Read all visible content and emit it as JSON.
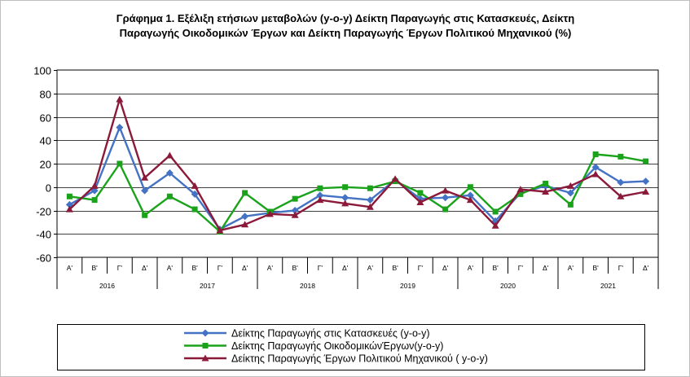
{
  "chart_data": {
    "type": "line",
    "title_lines": [
      "Γράφημα 1. Εξέλιξη ετήσιων μεταβολών (y-o-y) Δείκτη Παραγωγής στις Κατασκευές, Δείκτη",
      "Παραγωγής Οικοδομικών Έργων και  Δείκτη Παραγωγής  Έργων Πολιτικού Μηχανικού (%)"
    ],
    "quarters": [
      "Α'",
      "Β'",
      "Γ'",
      "Δ'",
      "Α'",
      "Β'",
      "Γ'",
      "Δ'",
      "Α'",
      "Β'",
      "Γ'",
      "Δ'",
      "Α'",
      "Β'",
      "Γ'",
      "Δ'",
      "Α'",
      "Β'",
      "Γ'",
      "Δ'",
      "Α'",
      "Β'",
      "Γ'",
      "Δ'"
    ],
    "years": [
      "2016",
      "2017",
      "2018",
      "2019",
      "2020",
      "2021"
    ],
    "yticks": [
      "100",
      "80",
      "60",
      "40",
      "20",
      "0",
      "-20",
      "-40",
      "-60"
    ],
    "ylim": [
      -60,
      100
    ],
    "grid": true,
    "legend_position": "bottom",
    "series": [
      {
        "name": "Δείκτης Παραγωγής στις Κατασκευές (y-o-y)",
        "color": "#4472c4",
        "marker": "diamond",
        "values": [
          -15,
          -3,
          51,
          -3,
          12,
          -6,
          -36,
          -25,
          -22,
          -20,
          -7,
          -9,
          -11,
          6,
          -10,
          -9,
          -7,
          -29,
          -5,
          1,
          -5,
          17,
          4,
          5
        ]
      },
      {
        "name": "Δείκτης Παραγωγής ΟικοδομικώνΈργων(y-o-y)",
        "color": "#1aa31a",
        "marker": "square",
        "values": [
          -8,
          -11,
          20,
          -24,
          -8,
          -19,
          -38,
          -5,
          -21,
          -10,
          -1,
          0,
          -1,
          5,
          -5,
          -19,
          0,
          -21,
          -6,
          3,
          -15,
          28,
          26,
          22
        ]
      },
      {
        "name": "Δείκτης Παραγωγής Έργων Πολιτικού Μηχανικού ( y-o-y)",
        "color": "#8b1a3a",
        "marker": "triangle",
        "values": [
          -19,
          1,
          75,
          8,
          27,
          1,
          -37,
          -32,
          -23,
          -24,
          -11,
          -14,
          -17,
          7,
          -13,
          -3,
          -11,
          -33,
          -2,
          -4,
          1,
          11,
          -8,
          -4
        ]
      }
    ]
  }
}
